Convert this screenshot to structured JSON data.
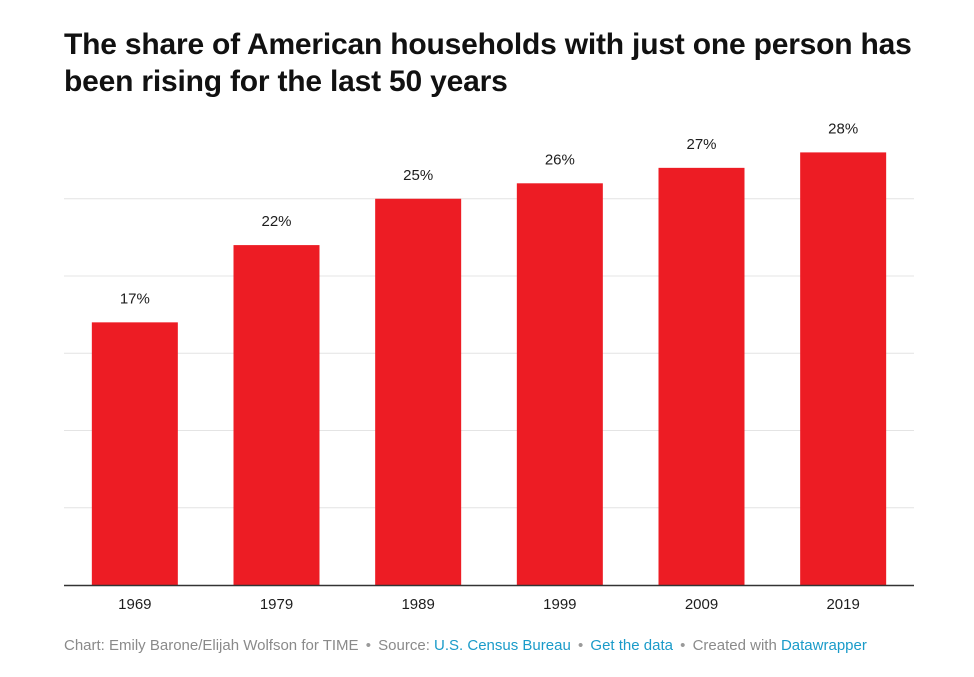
{
  "title": "The share of American households with just one person has been rising for the last 50 years",
  "colors": {
    "bar": "#ed1c24",
    "grid": "#e4e4e4",
    "axis": "#333333",
    "link": "#1a9bc9",
    "footer_text": "#8a8a8a"
  },
  "chart_data": {
    "type": "bar",
    "categories": [
      "1969",
      "1979",
      "1989",
      "1999",
      "2009",
      "2019"
    ],
    "values": [
      17,
      22,
      25,
      26,
      27,
      28
    ],
    "data_labels": [
      "17%",
      "22%",
      "25%",
      "26%",
      "27%",
      "28%"
    ],
    "title": "The share of American households with just one person has been rising for the last 50 years",
    "xlabel": "",
    "ylabel": "",
    "ylim": [
      0,
      30
    ],
    "grid": true,
    "gridline_values": [
      5,
      10,
      15,
      20,
      25
    ],
    "legend": "none"
  },
  "footer": {
    "credit": "Chart: Emily Barone/Elijah Wolfson for TIME",
    "source_prefix": "Source:",
    "source_link": "U.S. Census Bureau",
    "data_link": "Get the data",
    "created_prefix": "Created with",
    "created_link": "Datawrapper",
    "separator": "•"
  }
}
